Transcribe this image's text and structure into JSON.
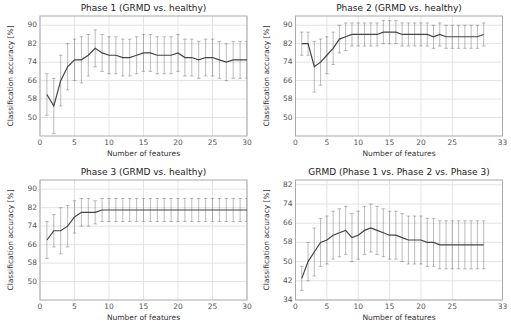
{
  "chart_data": [
    {
      "type": "line",
      "title": "Phase 1 (GRMD vs. healthy)",
      "xlabel": "Number of features",
      "ylabel": "Classification accuracy [%]",
      "x": [
        1,
        2,
        3,
        4,
        5,
        6,
        7,
        8,
        9,
        10,
        11,
        12,
        13,
        14,
        15,
        16,
        17,
        18,
        19,
        20,
        21,
        22,
        23,
        24,
        25,
        26,
        27,
        28,
        29,
        30
      ],
      "xlim": [
        0,
        30
      ],
      "xticks": [
        0,
        5,
        10,
        15,
        20,
        25,
        30
      ],
      "ylim": [
        42,
        94
      ],
      "yticks": [
        50,
        58,
        66,
        74,
        82,
        90
      ],
      "grid": true,
      "series": [
        {
          "color": "#444444",
          "values": [
            60,
            55,
            66,
            72,
            75,
            75,
            77,
            80,
            78,
            77,
            77,
            76,
            76,
            77,
            78,
            78,
            77,
            77,
            77,
            78,
            76,
            76,
            75,
            76,
            76,
            75,
            74,
            75,
            75,
            75
          ],
          "errors": [
            9,
            12,
            11,
            10,
            9,
            10,
            9,
            8,
            8,
            8,
            8,
            8,
            8,
            8,
            8,
            8,
            8,
            8,
            8,
            8,
            8,
            8,
            8,
            8,
            8,
            8,
            8,
            8,
            8,
            8
          ]
        }
      ]
    },
    {
      "type": "line",
      "title": "Phase 2 (GRMD vs. healthy)",
      "xlabel": "Number of features",
      "ylabel": "Classification accuracy [%]",
      "x": [
        1,
        2,
        3,
        4,
        5,
        6,
        7,
        8,
        9,
        10,
        11,
        12,
        13,
        14,
        15,
        16,
        17,
        18,
        19,
        20,
        21,
        22,
        23,
        24,
        25,
        26,
        27,
        28,
        29,
        30
      ],
      "xlim": [
        0,
        33
      ],
      "xticks": [
        0,
        5,
        10,
        15,
        20,
        25,
        33
      ],
      "ylim": [
        42,
        94
      ],
      "yticks": [
        50,
        58,
        66,
        74,
        82,
        90
      ],
      "grid": true,
      "series": [
        {
          "color": "#444444",
          "values": [
            82,
            82,
            72,
            74,
            77,
            80,
            84,
            85,
            86,
            86,
            86,
            86,
            86,
            87,
            87,
            87,
            86,
            86,
            86,
            86,
            86,
            85,
            86,
            85,
            85,
            85,
            85,
            85,
            85,
            86
          ],
          "errors": [
            5,
            5,
            11,
            10,
            8,
            7,
            6,
            6,
            5,
            5,
            5,
            5,
            5,
            5,
            5,
            5,
            5,
            5,
            5,
            5,
            5,
            5,
            5,
            5,
            5,
            5,
            5,
            5,
            5,
            5
          ]
        }
      ]
    },
    {
      "type": "line",
      "title": "Phase 3 (GRMD vs. healthy)",
      "xlabel": "Number of features",
      "ylabel": "Classification accuracy [%]",
      "x": [
        1,
        2,
        3,
        4,
        5,
        6,
        7,
        8,
        9,
        10,
        11,
        12,
        13,
        14,
        15,
        16,
        17,
        18,
        19,
        20,
        21,
        22,
        23,
        24,
        25,
        26,
        27,
        28,
        29,
        30
      ],
      "xlim": [
        0,
        30
      ],
      "xticks": [
        0,
        5,
        10,
        15,
        20,
        25,
        30
      ],
      "ylim": [
        42,
        94
      ],
      "yticks": [
        50,
        58,
        66,
        74,
        82,
        90
      ],
      "grid": true,
      "series": [
        {
          "color": "#444444",
          "values": [
            68,
            72,
            72,
            74,
            78,
            80,
            80,
            80,
            81,
            81,
            81,
            81,
            81,
            81,
            81,
            81,
            81,
            81,
            81,
            81,
            81,
            81,
            81,
            81,
            81,
            81,
            81,
            81,
            81,
            81
          ],
          "errors": [
            8,
            7,
            10,
            9,
            7,
            6,
            6,
            5,
            5,
            5,
            5,
            5,
            5,
            5,
            5,
            5,
            5,
            5,
            5,
            5,
            5,
            5,
            5,
            5,
            5,
            5,
            5,
            5,
            5,
            5
          ]
        }
      ]
    },
    {
      "type": "line",
      "title": "GRMD (Phase 1 vs. Phase 2 vs. Phase 3)",
      "xlabel": "Number of features",
      "ylabel": "Classification accuracy [%]",
      "x": [
        1,
        2,
        3,
        4,
        5,
        6,
        7,
        8,
        9,
        10,
        11,
        12,
        13,
        14,
        15,
        16,
        17,
        18,
        19,
        20,
        21,
        22,
        23,
        24,
        25,
        26,
        27,
        28,
        29,
        30
      ],
      "xlim": [
        0,
        33
      ],
      "xticks": [
        0,
        5,
        10,
        15,
        20,
        25,
        33
      ],
      "ylim": [
        34,
        84
      ],
      "yticks": [
        34,
        42,
        50,
        58,
        66,
        74,
        82
      ],
      "grid": true,
      "series": [
        {
          "color": "#444444",
          "values": [
            43,
            50,
            54,
            58,
            59,
            61,
            62,
            63,
            60,
            61,
            63,
            64,
            63,
            62,
            61,
            61,
            60,
            59,
            59,
            59,
            58,
            58,
            57,
            57,
            57,
            57,
            57,
            57,
            57,
            57
          ],
          "errors": [
            5,
            8,
            10,
            10,
            10,
            10,
            10,
            10,
            10,
            10,
            10,
            10,
            10,
            10,
            10,
            10,
            10,
            10,
            10,
            10,
            10,
            10,
            10,
            10,
            10,
            10,
            10,
            10,
            10,
            10
          ]
        }
      ]
    }
  ]
}
